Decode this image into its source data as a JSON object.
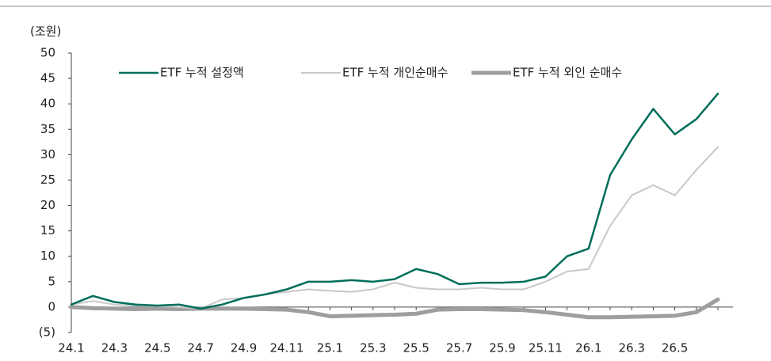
{
  "chart_data": {
    "type": "line",
    "y_label": "(조원)",
    "categories": [
      "24.1",
      null,
      "24.3",
      null,
      "24.5",
      null,
      "24.7",
      null,
      "24.9",
      null,
      "24.11",
      null,
      "25.1",
      null,
      "25.3",
      null,
      "25.5",
      null,
      "25.7",
      null,
      "25.9",
      null,
      "25.11",
      null,
      "26.1",
      null,
      "26.3",
      null,
      "26.5",
      null,
      null
    ],
    "series": [
      {
        "name": "ETF 누적 설정액",
        "color": "#006e5a",
        "width": 2.5,
        "values": [
          0.5,
          2.2,
          1,
          0.5,
          0.3,
          0.5,
          -0.3,
          0.5,
          1.8,
          2.5,
          3.5,
          5,
          5,
          5.3,
          5,
          5.5,
          7.5,
          6.5,
          4.5,
          4.8,
          4.8,
          5,
          6,
          10,
          11.5,
          26,
          33,
          39,
          34,
          37,
          42
        ]
      },
      {
        "name": "ETF 누적 개인순매수",
        "color": "#c8c8c8",
        "width": 2,
        "values": [
          0.5,
          1.2,
          0.5,
          0.3,
          0.2,
          0,
          -0.3,
          1.5,
          1.8,
          2.5,
          3,
          3.5,
          3.2,
          3,
          3.5,
          4.8,
          3.8,
          3.5,
          3.5,
          3.8,
          3.5,
          3.5,
          5,
          7,
          7.5,
          16,
          22,
          24,
          22,
          27,
          31.5
        ]
      },
      {
        "name": "ETF 누적 외인 순매수",
        "color": "#9e9e9e",
        "width": 5,
        "values": [
          0,
          -0.2,
          -0.3,
          -0.4,
          -0.3,
          -0.4,
          -0.3,
          -0.3,
          -0.3,
          -0.4,
          -0.5,
          -1,
          -1.8,
          -1.7,
          -1.6,
          -1.5,
          -1.3,
          -0.5,
          -0.4,
          -0.4,
          -0.5,
          -0.6,
          -1,
          -1.5,
          -2,
          -2,
          -1.9,
          -1.8,
          -1.7,
          -1,
          1.5
        ]
      }
    ],
    "ylim": [
      -5,
      50
    ],
    "yticks": [
      {
        "value": -5,
        "label": "(5)"
      },
      0,
      5,
      10,
      15,
      20,
      25,
      30,
      35,
      40,
      45,
      50
    ]
  }
}
